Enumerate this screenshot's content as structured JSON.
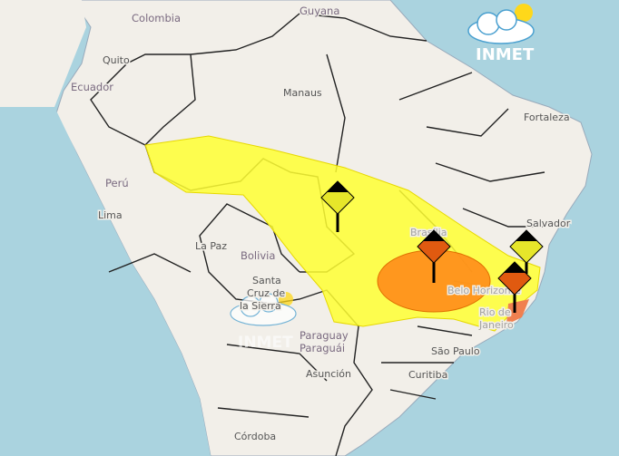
{
  "colors": {
    "ocean": "#aad3df",
    "land": "#f2efe9",
    "border": "#222222",
    "warning_yellow": "#ffff33",
    "warning_orange": "#ff8c1a",
    "warning_orange_light": "#f08050"
  },
  "logo": {
    "text": "INMET",
    "icon": "cloud-sun-icon"
  },
  "watermark": {
    "text": "INMET"
  },
  "labels": {
    "colombia": "Colombia",
    "guyana": "Guyana",
    "quito": "Quito",
    "ecuador": "Ecuador",
    "manaus": "Manaus",
    "fortaleza": "Fortaleza",
    "peru": "Perú",
    "lima": "Lima",
    "la_paz": "La Paz",
    "bolivia": "Bolivia",
    "santa_cruz_1": "Santa",
    "santa_cruz_2": "Cruz de",
    "santa_cruz_3": "la Sierra",
    "salvador": "Salvador",
    "brasilia": "Brasília",
    "belo_horizonte": "Belo Horizonte",
    "rio_1": "Rio de",
    "rio_2": "Janeiro",
    "paraguay": "Paraguay",
    "paraguai": "Paraguái",
    "asuncion": "Asunción",
    "sao_paulo": "São Paulo",
    "curitiba": "Curitiba",
    "cordoba": "Córdoba"
  },
  "warnings": [
    {
      "level": "yellow",
      "icon": "warning-yellow-icon"
    },
    {
      "level": "orange",
      "icon": "warning-orange-icon"
    },
    {
      "level": "yellow",
      "icon": "warning-yellow-icon"
    },
    {
      "level": "orange",
      "icon": "warning-orange-icon"
    }
  ]
}
